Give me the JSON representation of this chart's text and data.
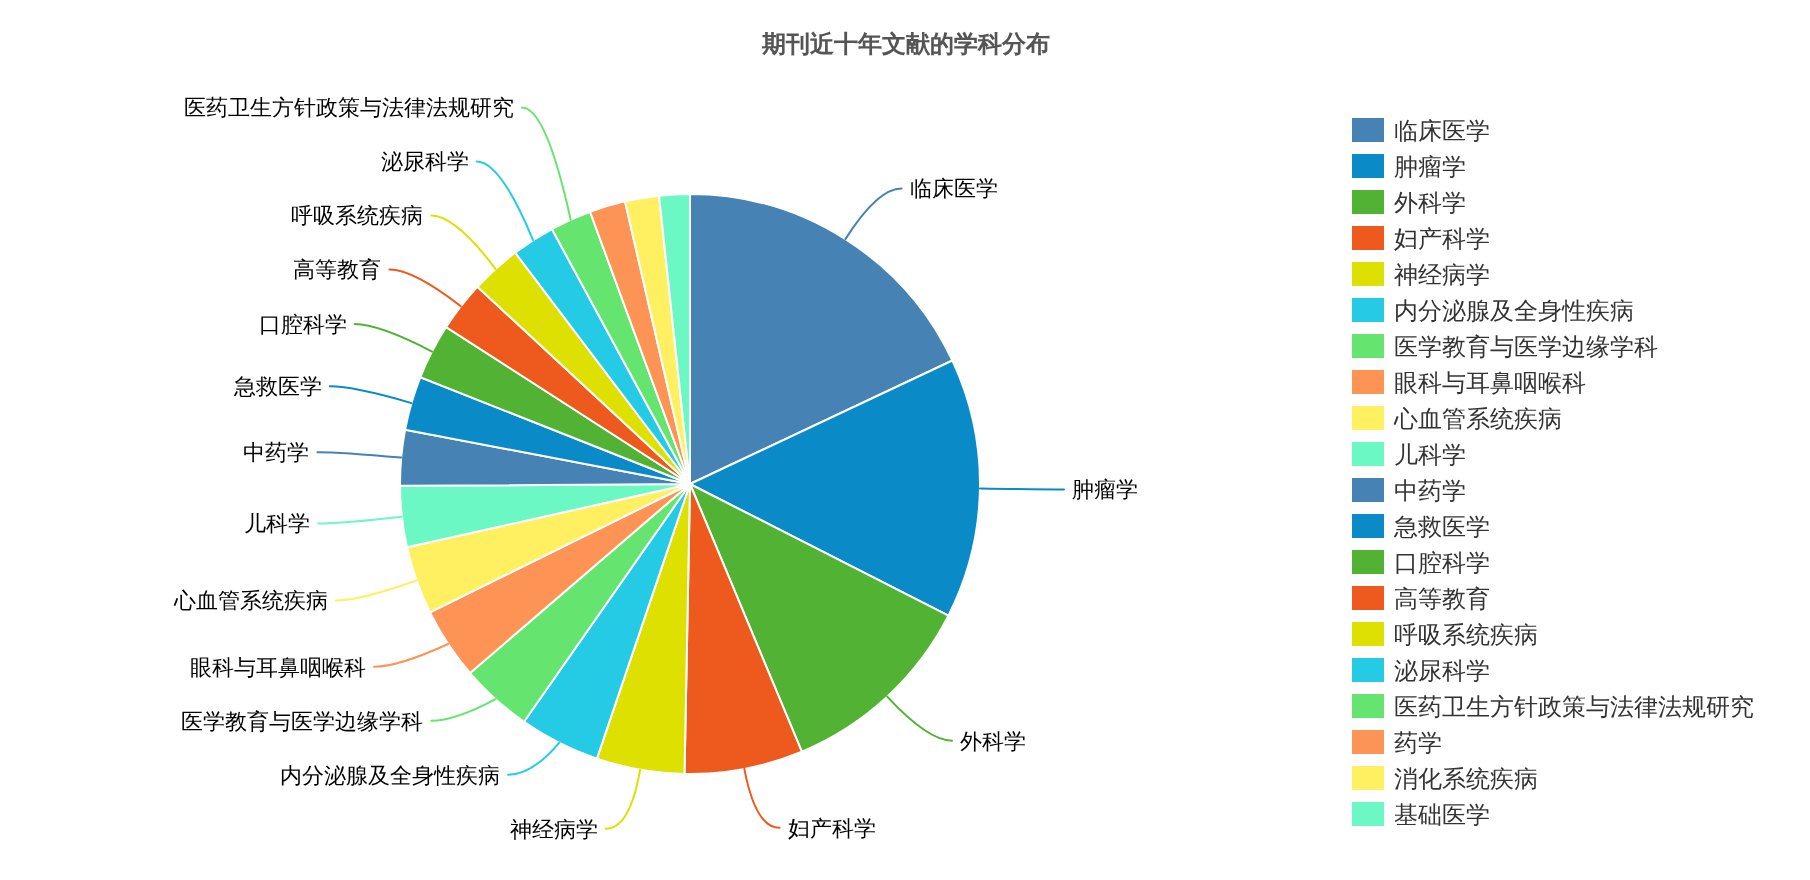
{
  "chart_data": {
    "type": "pie",
    "title": "期刊近十年文献的学科分布",
    "categories": [
      "临床医学",
      "肿瘤学",
      "外科学",
      "妇产科学",
      "神经病学",
      "内分泌腺及全身性疾病",
      "医学教育与医学边缘学科",
      "眼科与耳鼻咽喉科",
      "心血管系统疾病",
      "儿科学",
      "中药学",
      "急救医学",
      "口腔科学",
      "高等教育",
      "呼吸系统疾病",
      "泌尿科学",
      "医药卫生方针政策与法律法规研究",
      "药学",
      "消化系统疾病",
      "基础医学"
    ],
    "values": [
      18.0,
      14.5,
      11.2,
      6.6,
      4.9,
      4.5,
      4.0,
      4.0,
      3.8,
      3.4,
      3.1,
      3.0,
      3.1,
      2.8,
      2.8,
      2.4,
      2.3,
      2.0,
      1.9,
      1.7
    ],
    "colors": [
      "#4682b4",
      "#0a8bc7",
      "#52b234",
      "#ee591e",
      "#dde001",
      "#25cbe4",
      "#65e56f",
      "#fe9356",
      "#fff062",
      "#6bf8c5",
      "#4682b4",
      "#0a8bc7",
      "#52b234",
      "#ee591e",
      "#dde001",
      "#25cbe4",
      "#65e56f",
      "#fe9356",
      "#fff062",
      "#6bf8c5"
    ],
    "legend": "right"
  }
}
